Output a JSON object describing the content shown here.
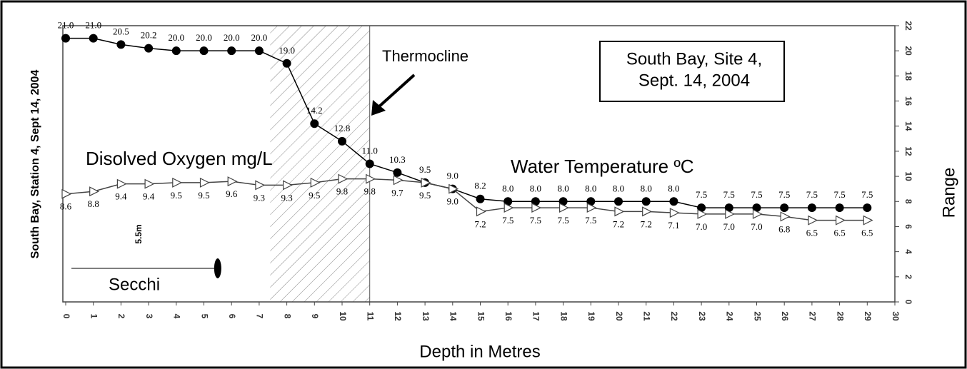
{
  "chart_data": {
    "type": "line",
    "x_label": "Depth in Metres",
    "y_label": "South Bay, Station 4, Sept 14, 2004",
    "y2_label": "Range",
    "x": [
      0,
      1,
      2,
      3,
      4,
      5,
      6,
      7,
      8,
      9,
      10,
      11,
      12,
      13,
      14,
      15,
      16,
      17,
      18,
      19,
      20,
      21,
      22,
      23,
      24,
      25,
      26,
      27,
      28,
      29
    ],
    "series": [
      {
        "name": "Water Temperature ºC",
        "color": "#000000",
        "marker": "circle",
        "values": [
          21.0,
          21.0,
          20.5,
          20.2,
          20.0,
          20.0,
          20.0,
          20.0,
          19.0,
          14.2,
          12.8,
          11.0,
          10.3,
          9.5,
          9.0,
          8.2,
          8.0,
          8.0,
          8.0,
          8.0,
          8.0,
          8.0,
          8.0,
          7.5,
          7.5,
          7.5,
          7.5,
          7.5,
          7.5,
          7.5
        ],
        "value_labels": [
          "21.0",
          "21.0",
          "20.5",
          "20.2",
          "20.0",
          "20.0",
          "20.0",
          "20.0",
          "19.0",
          "14.2",
          "12.8",
          "11.0",
          "10.3",
          "9.5",
          "9.0",
          "8.2",
          "8.0",
          "8.0",
          "8.0",
          "8.0",
          "8.0",
          "8.0",
          "8.0",
          "7.5",
          "7.5",
          "7.5",
          "7.5",
          "7.5",
          "7.5",
          "7.5"
        ]
      },
      {
        "name": "Disolved Oxygen mg/L",
        "color": "#444444",
        "marker": "triangle",
        "values": [
          8.6,
          8.8,
          9.4,
          9.4,
          9.5,
          9.5,
          9.6,
          9.3,
          9.3,
          9.5,
          9.8,
          9.8,
          9.7,
          9.5,
          9.0,
          7.2,
          7.5,
          7.5,
          7.5,
          7.5,
          7.2,
          7.2,
          7.1,
          7.0,
          7.0,
          7.0,
          6.8,
          6.5,
          6.5,
          6.5
        ],
        "value_labels": [
          "8.6",
          "8.8",
          "9.4",
          "9.4",
          "9.5",
          "9.5",
          "9.6",
          "9.3",
          "9.3",
          "9.5",
          "9.8",
          "9.8",
          "9.7",
          "9.5",
          "9.0",
          "7.2",
          "7.5",
          "7.5",
          "7.5",
          "7.5",
          "7.2",
          "7.2",
          "7.1",
          "7.0",
          "7.0",
          "7.0",
          "6.8",
          "6.5",
          "6.5",
          "6.5"
        ]
      }
    ],
    "xlim": [
      0,
      30
    ],
    "xticks": [
      0,
      1,
      2,
      3,
      4,
      5,
      6,
      7,
      8,
      9,
      10,
      11,
      12,
      13,
      14,
      15,
      16,
      17,
      18,
      19,
      20,
      21,
      22,
      23,
      24,
      25,
      26,
      27,
      28,
      29,
      30
    ],
    "ylim": [
      0,
      22
    ],
    "yticks": [
      0,
      2,
      4,
      6,
      8,
      10,
      12,
      14,
      16,
      18,
      20,
      22
    ],
    "thermocline": {
      "label": "Thermocline",
      "range": [
        7.4,
        11
      ]
    },
    "secchi": {
      "label": "Secchi",
      "depth": 5.5,
      "depth_label": "5.5m"
    },
    "annotation": [
      "South Bay, Site 4,",
      "Sept. 14, 2004"
    ]
  }
}
